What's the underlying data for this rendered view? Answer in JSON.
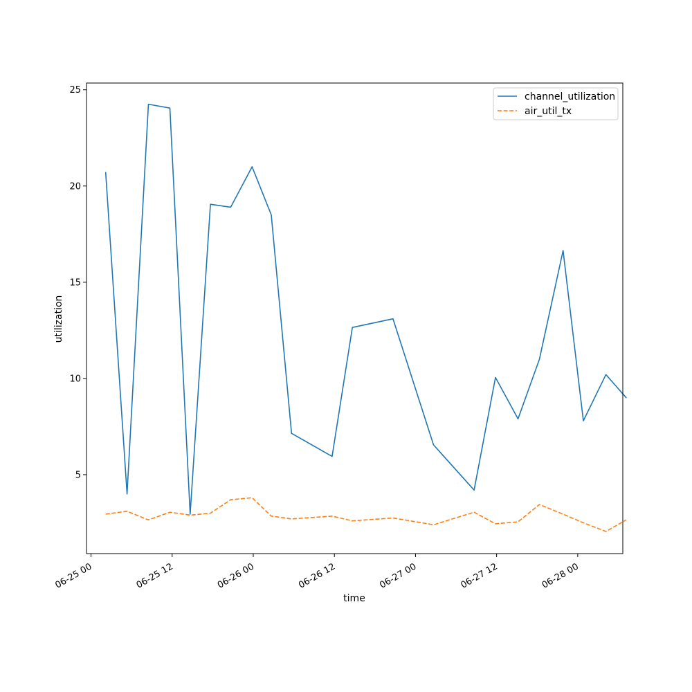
{
  "chart_data": {
    "type": "line",
    "title": "",
    "xlabel": "time",
    "ylabel": "utilization",
    "x_type": "datetime",
    "xlim": [
      "2025-06-24T23:20",
      "2025-06-28T06:40"
    ],
    "ylim": [
      0.9,
      25.35
    ],
    "x_ticks": [
      {
        "value": "2025-06-25T00:00",
        "label": "06-25 00"
      },
      {
        "value": "2025-06-25T12:00",
        "label": "06-25 12"
      },
      {
        "value": "2025-06-26T00:00",
        "label": "06-26 00"
      },
      {
        "value": "2025-06-26T12:00",
        "label": "06-26 12"
      },
      {
        "value": "2025-06-27T00:00",
        "label": "06-27 00"
      },
      {
        "value": "2025-06-27T12:00",
        "label": "06-27 12"
      },
      {
        "value": "2025-06-28T00:00",
        "label": "06-28 00"
      }
    ],
    "y_ticks": [
      5,
      10,
      15,
      20,
      25
    ],
    "grid": false,
    "legend_position": "top-right",
    "x": [
      "2025-06-25T02:10",
      "2025-06-25T05:20",
      "2025-06-25T08:30",
      "2025-06-25T11:40",
      "2025-06-25T14:40",
      "2025-06-25T17:40",
      "2025-06-25T20:40",
      "2025-06-25T23:50",
      "2025-06-26T02:40",
      "2025-06-26T05:40",
      "2025-06-26T11:40",
      "2025-06-26T14:40",
      "2025-06-26T20:40",
      "2025-06-27T02:40",
      "2025-06-27T08:40",
      "2025-06-27T11:50",
      "2025-06-27T15:10",
      "2025-06-27T18:20",
      "2025-06-27T21:50",
      "2025-06-28T00:50",
      "2025-06-28T04:10",
      "2025-06-28T07:10"
    ],
    "series": [
      {
        "name": "channel_utilization",
        "color": "#1f77b4",
        "dash": "solid",
        "values": [
          20.7,
          4.0,
          24.25,
          24.05,
          2.95,
          19.05,
          18.9,
          21.0,
          18.5,
          7.15,
          5.95,
          12.65,
          13.1,
          6.55,
          4.2,
          10.05,
          7.9,
          11.0,
          16.65,
          7.8,
          10.2,
          9.0
        ]
      },
      {
        "name": "air_util_tx",
        "color": "#ff7f0e",
        "dash": "dashed",
        "values": [
          2.95,
          3.1,
          2.65,
          3.05,
          2.9,
          3.0,
          3.7,
          3.8,
          2.85,
          2.7,
          2.85,
          2.6,
          2.75,
          2.4,
          3.05,
          2.45,
          2.55,
          3.45,
          2.95,
          2.5,
          2.05,
          2.65
        ]
      }
    ]
  }
}
